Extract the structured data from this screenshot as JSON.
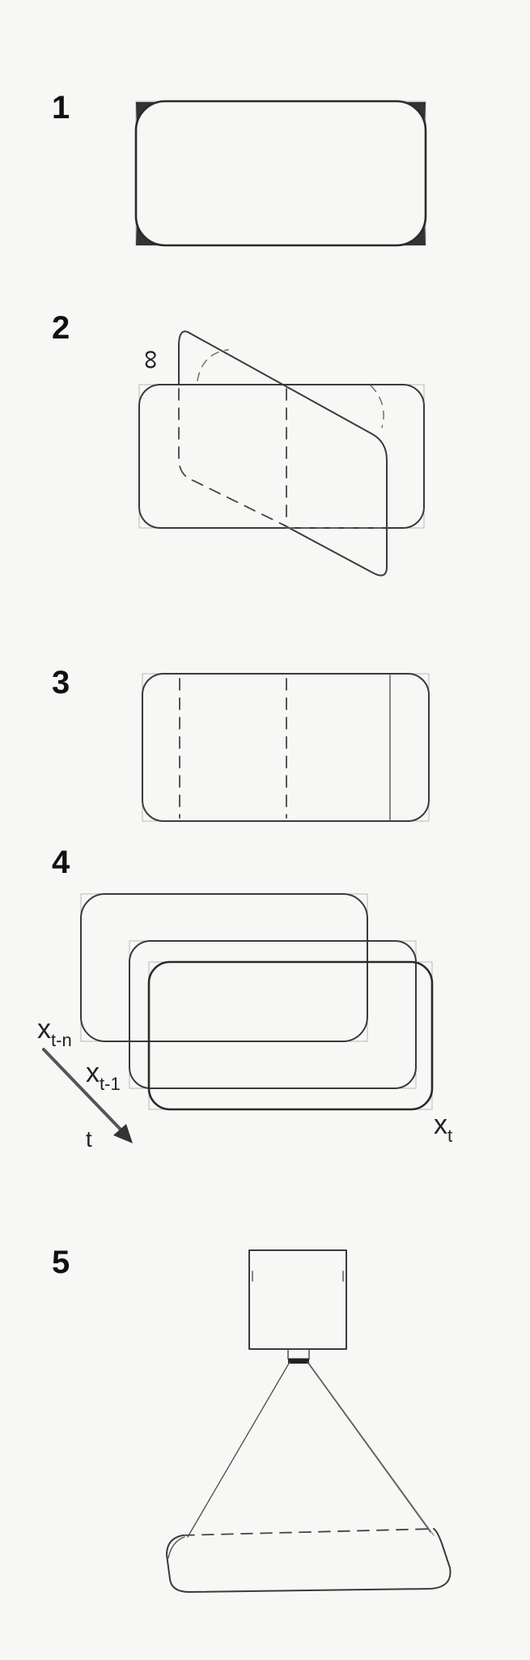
{
  "steps": [
    {
      "number": "1"
    },
    {
      "number": "2",
      "annotation": "∞"
    },
    {
      "number": "3"
    },
    {
      "number": "4",
      "labels": {
        "oldest_subscript": "t-n",
        "previous_subscript": "t-1",
        "current_subscript": "t",
        "variable": "x",
        "time_axis": "t"
      }
    },
    {
      "number": "5"
    }
  ]
}
